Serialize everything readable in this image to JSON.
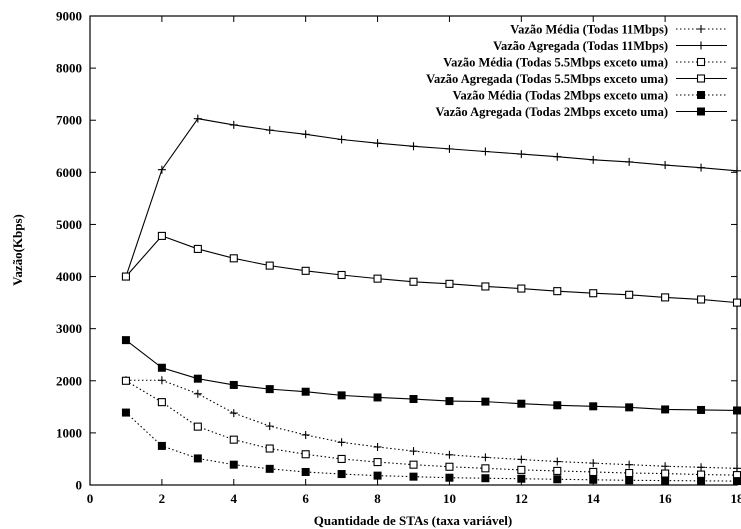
{
  "chart_data": {
    "type": "line",
    "title": "",
    "xlabel": "Quantidade de STAs (taxa variável)",
    "ylabel": "Vazão(Kbps)",
    "xlim": [
      0,
      18
    ],
    "ylim": [
      0,
      9000
    ],
    "xticks": [
      0,
      2,
      4,
      6,
      8,
      10,
      12,
      14,
      16,
      18
    ],
    "yticks": [
      0,
      1000,
      2000,
      3000,
      4000,
      5000,
      6000,
      7000,
      8000,
      9000
    ],
    "grid": false,
    "legend_position": "top-right",
    "x": [
      1,
      2,
      3,
      4,
      5,
      6,
      7,
      8,
      9,
      10,
      11,
      12,
      13,
      14,
      15,
      16,
      17,
      18
    ],
    "series": [
      {
        "name": "Vazão Média (Todas 11Mbps)",
        "line": "dotted",
        "marker": "plus",
        "values": [
          2010,
          2010,
          1750,
          1380,
          1130,
          960,
          820,
          730,
          650,
          580,
          530,
          490,
          450,
          420,
          390,
          360,
          340,
          320
        ]
      },
      {
        "name": "Vazão Agregada (Todas 11Mbps)",
        "line": "solid",
        "marker": "plus",
        "values": [
          4000,
          6050,
          7030,
          6910,
          6810,
          6730,
          6630,
          6560,
          6500,
          6450,
          6400,
          6350,
          6300,
          6240,
          6200,
          6140,
          6090,
          6030
        ]
      },
      {
        "name": "Vazão Média (Todas 5.5Mbps exceto uma)",
        "line": "dotted",
        "marker": "open-square",
        "values": [
          2000,
          1590,
          1120,
          870,
          700,
          590,
          500,
          440,
          390,
          350,
          320,
          290,
          270,
          250,
          230,
          220,
          200,
          190
        ]
      },
      {
        "name": "Vazão Agregada (Todas 5.5Mbps exceto uma)",
        "line": "solid",
        "marker": "open-square",
        "values": [
          4000,
          4780,
          4530,
          4350,
          4210,
          4110,
          4030,
          3960,
          3900,
          3860,
          3810,
          3770,
          3720,
          3680,
          3650,
          3600,
          3560,
          3500
        ]
      },
      {
        "name": "Vazão Média (Todas 2Mbps exceto uma)",
        "line": "dotted",
        "marker": "filled-square",
        "values": [
          1390,
          750,
          510,
          390,
          310,
          250,
          210,
          180,
          160,
          140,
          130,
          120,
          110,
          100,
          90,
          85,
          80,
          75
        ]
      },
      {
        "name": "Vazão Agregada (Todas 2Mbps exceto uma)",
        "line": "solid",
        "marker": "filled-square",
        "values": [
          2780,
          2250,
          2040,
          1920,
          1840,
          1790,
          1720,
          1680,
          1650,
          1610,
          1600,
          1560,
          1530,
          1510,
          1490,
          1450,
          1440,
          1430
        ]
      }
    ]
  }
}
